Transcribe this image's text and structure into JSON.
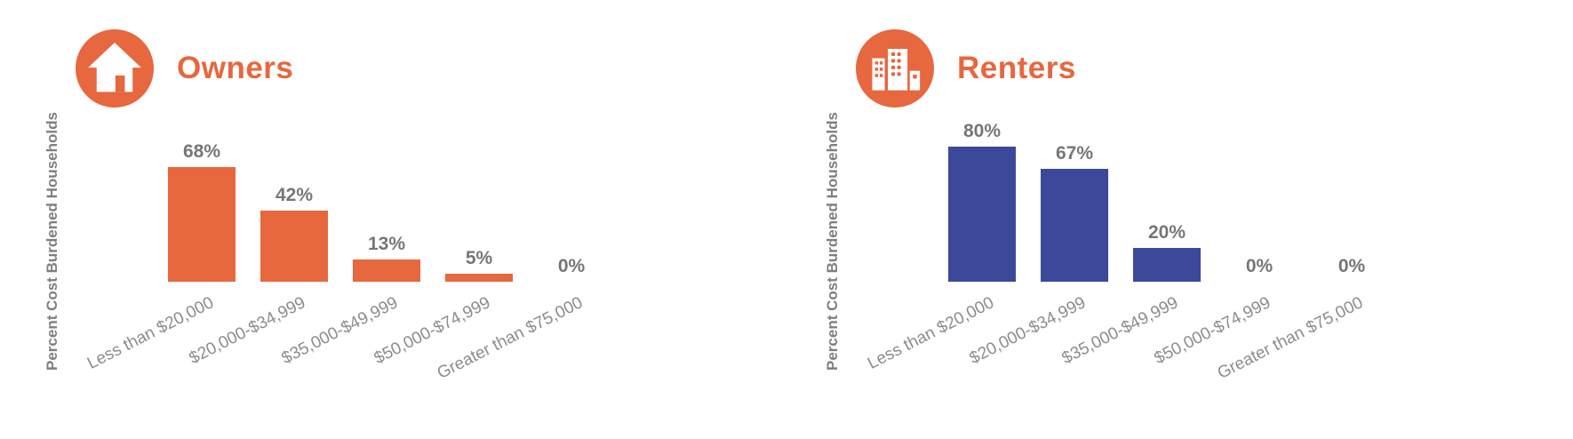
{
  "page": {
    "background": "#FFFFFF"
  },
  "colors": {
    "accent_orange": "#E7673E",
    "renters_blue": "#3C4899",
    "data_label_gray": "#767676",
    "axis_label_gray": "#8C8C8C",
    "y_label_gray": "#7F7F7F"
  },
  "chart_data": [
    {
      "type": "bar",
      "title": "Owners",
      "icon": "house-icon",
      "ylabel": "Percent Cost Burdened Households",
      "xlabel": "",
      "categories": [
        "Less than $20,000",
        "$20,000-$34,999",
        "$35,000-$49,999",
        "$50,000-$74,999",
        "Greater than $75,000"
      ],
      "values": [
        68,
        42,
        13,
        5,
        0
      ],
      "data_labels": [
        "68%",
        "42%",
        "13%",
        "5%",
        "0%"
      ],
      "bar_color": "#E7673E",
      "ylim": [
        0,
        100
      ],
      "grid": false,
      "legend": "none",
      "x_tick_rotation_deg": -27
    },
    {
      "type": "bar",
      "title": "Renters",
      "icon": "buildings-icon",
      "ylabel": "Percent Cost Burdened Households",
      "xlabel": "",
      "categories": [
        "Less than $20,000",
        "$20,000-$34,999",
        "$35,000-$49,999",
        "$50,000-$74,999",
        "Greater than $75,000"
      ],
      "values": [
        80,
        67,
        20,
        0,
        0
      ],
      "data_labels": [
        "80%",
        "67%",
        "20%",
        "0%",
        "0%"
      ],
      "bar_color": "#3C4899",
      "ylim": [
        0,
        100
      ],
      "grid": false,
      "legend": "none",
      "x_tick_rotation_deg": -27
    }
  ]
}
